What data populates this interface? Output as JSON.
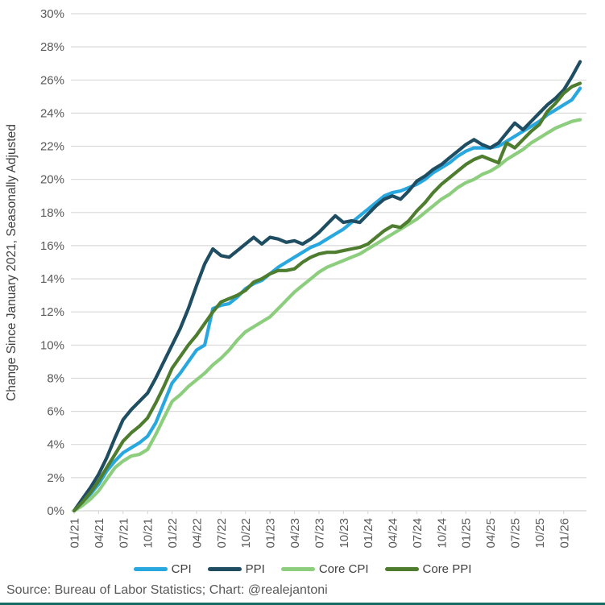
{
  "meta": {
    "source_note": "Source: Bureau of Labor Statistics; Chart: @realejantoni"
  },
  "chart_data": {
    "type": "line",
    "title": "",
    "xlabel": "",
    "ylabel": "Change Since January 2021, Seasonally Adjusted",
    "ylim": [
      0,
      30
    ],
    "ytick_step": 2,
    "ytick_suffix": "%",
    "grid": true,
    "legend_position": "bottom",
    "x_unit": "month",
    "x_start": "01/21",
    "x_end": "03/26",
    "points_per_series": 63,
    "x_tick_labels": [
      "01/21",
      "04/21",
      "07/21",
      "10/21",
      "01/22",
      "04/22",
      "07/22",
      "10/22",
      "01/23",
      "04/23",
      "07/23",
      "10/23",
      "01/24",
      "04/24",
      "07/24",
      "10/24",
      "01/25",
      "04/25",
      "07/25",
      "10/25",
      "01/26"
    ],
    "colors": {
      "grid": "#D9D9D9",
      "axis_tick_text": "#595959",
      "axis_title_text": "#404040",
      "source_text": "#595959",
      "bottom_border": "#176B62",
      "background": "#FFFFFF"
    },
    "series": [
      {
        "name": "CPI",
        "color": "#29A8E0",
        "values": [
          0,
          0.5,
          1.0,
          1.6,
          2.4,
          3.0,
          3.5,
          3.8,
          4.1,
          4.5,
          5.3,
          6.5,
          7.7,
          8.3,
          9.0,
          9.7,
          10.0,
          12.2,
          12.4,
          12.5,
          12.9,
          13.4,
          13.7,
          13.9,
          14.3,
          14.7,
          15.0,
          15.3,
          15.6,
          15.9,
          16.1,
          16.4,
          16.7,
          17.0,
          17.4,
          17.8,
          18.2,
          18.6,
          19.0,
          19.2,
          19.3,
          19.5,
          19.7,
          20.0,
          20.4,
          20.7,
          21.0,
          21.4,
          21.7,
          21.9,
          21.9,
          21.9,
          22.0,
          22.3,
          22.6,
          22.9,
          23.2,
          23.5,
          23.9,
          24.2,
          24.5,
          24.8,
          25.5
        ]
      },
      {
        "name": "PPI",
        "color": "#1F4E63",
        "values": [
          0,
          0.7,
          1.4,
          2.2,
          3.2,
          4.4,
          5.5,
          6.1,
          6.6,
          7.1,
          8.0,
          9.0,
          10.0,
          11.0,
          12.2,
          13.6,
          14.9,
          15.8,
          15.4,
          15.3,
          15.7,
          16.1,
          16.5,
          16.1,
          16.5,
          16.4,
          16.2,
          16.3,
          16.1,
          16.4,
          16.8,
          17.3,
          17.8,
          17.4,
          17.5,
          17.4,
          17.9,
          18.4,
          18.8,
          19.0,
          18.8,
          19.3,
          19.9,
          20.2,
          20.6,
          20.9,
          21.3,
          21.7,
          22.1,
          22.4,
          22.1,
          21.9,
          22.2,
          22.8,
          23.4,
          23.0,
          23.5,
          24.0,
          24.5,
          24.9,
          25.4,
          26.2,
          27.1
        ]
      },
      {
        "name": "Core CPI",
        "color": "#8CCE7D",
        "values": [
          0,
          0.3,
          0.7,
          1.2,
          1.9,
          2.6,
          3.0,
          3.3,
          3.4,
          3.7,
          4.6,
          5.6,
          6.6,
          7.0,
          7.5,
          7.9,
          8.3,
          8.8,
          9.2,
          9.7,
          10.3,
          10.8,
          11.1,
          11.4,
          11.7,
          12.2,
          12.7,
          13.2,
          13.6,
          14.0,
          14.4,
          14.7,
          14.9,
          15.1,
          15.3,
          15.5,
          15.8,
          16.1,
          16.4,
          16.7,
          17.0,
          17.3,
          17.6,
          18.0,
          18.4,
          18.8,
          19.1,
          19.5,
          19.8,
          20.0,
          20.3,
          20.5,
          20.8,
          21.2,
          21.5,
          21.8,
          22.2,
          22.5,
          22.8,
          23.1,
          23.3,
          23.5,
          23.6
        ]
      },
      {
        "name": "Core PPI",
        "color": "#4E7D2F",
        "values": [
          0,
          0.5,
          1.1,
          1.8,
          2.6,
          3.4,
          4.2,
          4.7,
          5.1,
          5.6,
          6.5,
          7.5,
          8.6,
          9.3,
          10.0,
          10.6,
          11.3,
          12.0,
          12.6,
          12.8,
          13.0,
          13.3,
          13.8,
          14.0,
          14.3,
          14.5,
          14.5,
          14.6,
          15.0,
          15.3,
          15.5,
          15.6,
          15.6,
          15.7,
          15.8,
          15.9,
          16.1,
          16.5,
          16.9,
          17.2,
          17.1,
          17.5,
          18.1,
          18.6,
          19.2,
          19.7,
          20.1,
          20.5,
          20.9,
          21.2,
          21.4,
          21.2,
          21.0,
          22.2,
          21.9,
          22.4,
          22.9,
          23.3,
          24.1,
          24.6,
          25.2,
          25.6,
          25.8
        ]
      }
    ]
  }
}
